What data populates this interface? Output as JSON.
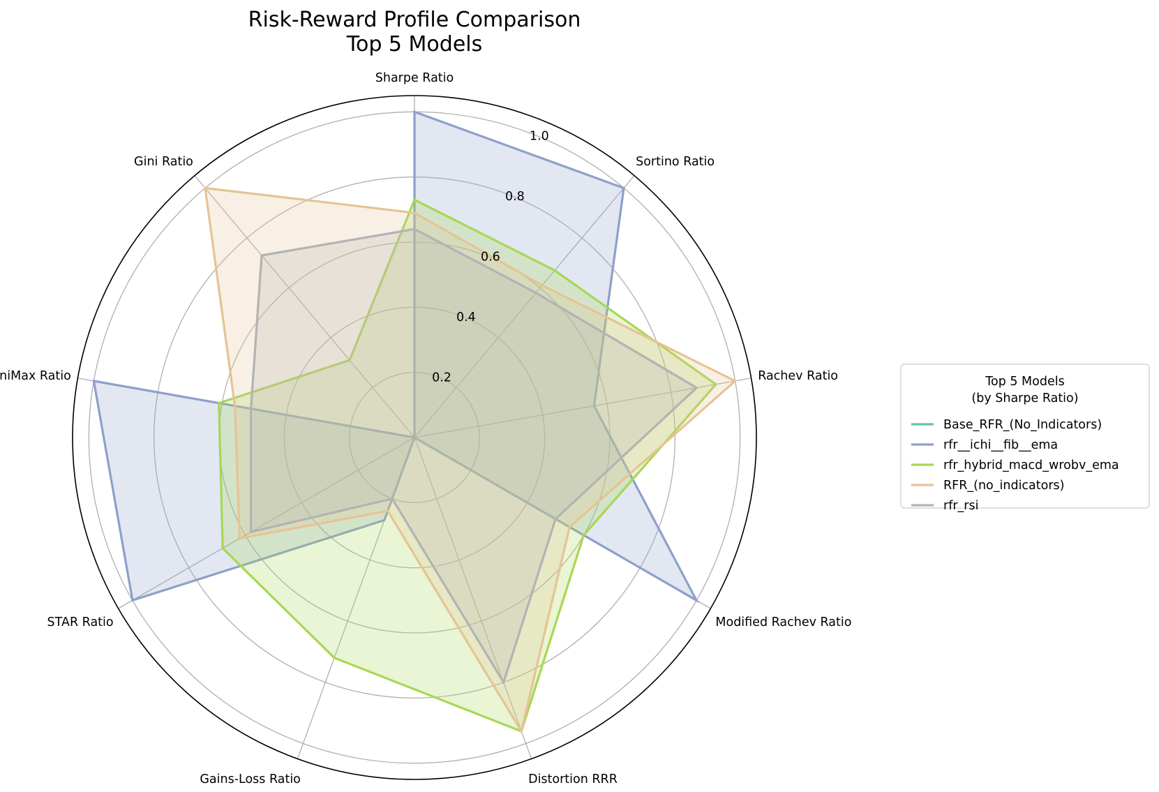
{
  "chart_data": {
    "type": "radar",
    "title": [
      "Risk-Reward Profile Comparison",
      "Top 5 Models"
    ],
    "axes": [
      "Sharpe Ratio",
      "Sortino Ratio",
      "Rachev Ratio",
      "Modified Rachev Ratio",
      "Distortion RRR",
      "Gains-Loss Ratio",
      "STAR Ratio",
      "MiniMax Ratio",
      "Gini Ratio"
    ],
    "rlim": [
      0,
      1.05
    ],
    "ticks": [
      0.2,
      0.4,
      0.6,
      0.8,
      1.0
    ],
    "tick_labels": [
      "0.2",
      "0.4",
      "0.6",
      "0.8",
      "1.0"
    ],
    "series": [
      {
        "name": "Base_RFR_(No_Indicators)",
        "color": "#66c2a5",
        "values": [
          0,
          0,
          0,
          0,
          0,
          0,
          0,
          0,
          0
        ]
      },
      {
        "name": "rfr__ichi__fib__ema",
        "color": "#8da0cb",
        "values": [
          1.0,
          1.0,
          0.56,
          1.0,
          0.0,
          0.27,
          1.0,
          1.0,
          0.0
        ]
      },
      {
        "name": "rfr_hybrid_macd_wrobv_ema",
        "color": "#a6d854",
        "values": [
          0.73,
          0.67,
          0.94,
          0.6,
          0.96,
          0.72,
          0.68,
          0.61,
          0.31
        ]
      },
      {
        "name": "RFR_(no_indicators)",
        "color": "#e5c494",
        "values": [
          0.69,
          0.61,
          1.0,
          0.55,
          0.96,
          0.24,
          0.62,
          0.56,
          1.0
        ]
      },
      {
        "name": "rfr_rsi",
        "color": "#b3b3b3",
        "values": [
          0.64,
          0.58,
          0.88,
          0.5,
          0.8,
          0.2,
          0.58,
          0.51,
          0.73
        ]
      }
    ],
    "legend": {
      "title": [
        "Top 5 Models",
        "(by Sharpe Ratio)"
      ],
      "position": "right"
    }
  }
}
